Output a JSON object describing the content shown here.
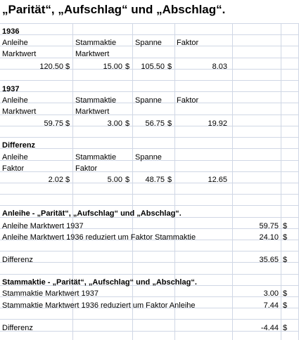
{
  "title": "„Parität“, „Aufschlag“ und „Abschlag“.",
  "y1936": {
    "header": "1936",
    "col_a_1": "Anleihe",
    "col_a_2": "Marktwert",
    "col_b_1": "Stammaktie",
    "col_b_2": "Marktwert",
    "col_c": "Spanne",
    "col_d": "Faktor",
    "v_a": "120.50",
    "v_b": "15.00",
    "v_c": "105.50",
    "v_d": "8.03"
  },
  "y1937": {
    "header": "1937",
    "col_a_1": "Anleihe",
    "col_a_2": "Marktwert",
    "col_b_1": "Stammaktie",
    "col_b_2": "Marktwert",
    "col_c": "Spanne",
    "col_d": "Faktor",
    "v_a": "59.75",
    "v_b": "3.00",
    "v_c": "56.75",
    "v_d": "19.92"
  },
  "diff": {
    "header": "Differenz",
    "col_a_1": "Anleihe",
    "col_a_2": "Faktor",
    "col_b_1": "Stammaktie",
    "col_b_2": "Faktor",
    "col_c": "Spanne",
    "v_a": "2.02",
    "v_b": "5.00",
    "v_c": "48.75",
    "v_d": "12.65"
  },
  "anleihe": {
    "header": "Anleihe - „Parität“, „Aufschlag“ und „Abschlag“.",
    "row1_label": "Anleihe Marktwert 1937",
    "row1_value": "59.75",
    "row2_label": "Anleihe Marktwert 1936 reduziert um Faktor Stammaktie",
    "row2_value": "24.10",
    "diff_label": "Differenz",
    "diff_value": "35.65"
  },
  "stammaktie": {
    "header": "Stammaktie - „Parität“, „Aufschlag“ und „Abschlag“.",
    "row1_label": "Stammaktie Marktwert 1937",
    "row1_value": "3.00",
    "row2_label": "Stammaktie Marktwert 1936 reduziert um Faktor Anleihe",
    "row2_value": "7.44",
    "diff_label": "Differenz",
    "diff_value": "-4.44"
  },
  "currency": "$"
}
